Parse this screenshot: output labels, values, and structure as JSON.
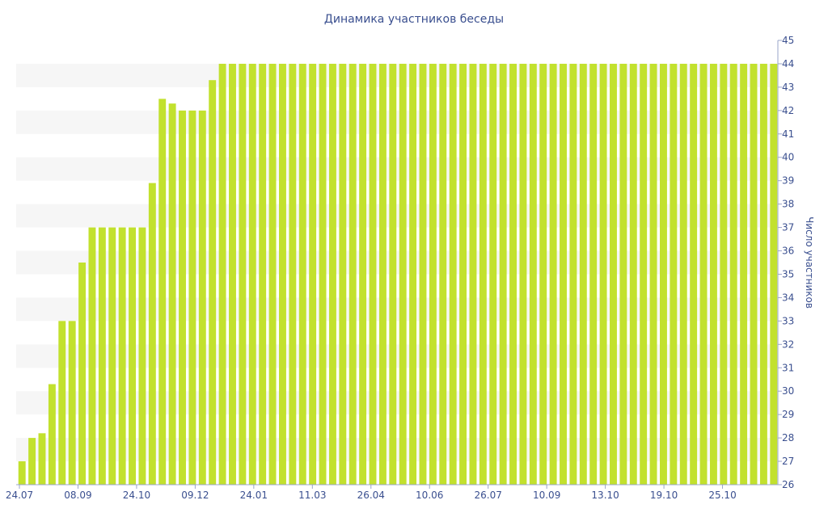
{
  "chart_data": {
    "type": "bar",
    "title": "Динамика участников беседы",
    "ylabel": "Число участников",
    "ylim": [
      26,
      45
    ],
    "y_ticks": [
      26,
      27,
      28,
      29,
      30,
      31,
      32,
      33,
      34,
      35,
      36,
      37,
      38,
      39,
      40,
      41,
      42,
      43,
      44,
      45
    ],
    "x_tick_labels": [
      "24.07",
      "08.09",
      "24.10",
      "09.12",
      "24.01",
      "11.03",
      "26.04",
      "10.06",
      "26.07",
      "10.09",
      "13.10",
      "19.10",
      "25.10"
    ],
    "bar_color": "#c2e12e",
    "values": [
      27,
      28,
      28.2,
      30.3,
      33,
      33,
      35.5,
      37,
      37,
      37,
      37,
      37,
      37,
      38.9,
      42.5,
      42.3,
      42,
      42,
      42,
      43.3,
      44,
      44,
      44,
      44,
      44,
      44,
      44,
      44,
      44,
      44,
      44,
      44,
      44,
      44,
      44,
      44,
      44,
      44,
      44,
      44,
      44,
      44,
      44,
      44,
      44,
      44,
      44,
      44,
      44,
      44,
      44,
      44,
      44,
      44,
      44,
      44,
      44,
      44,
      44,
      44,
      44,
      44,
      44,
      44,
      44,
      44,
      44,
      44,
      44,
      44,
      44,
      44,
      44,
      44,
      44,
      44
    ]
  }
}
